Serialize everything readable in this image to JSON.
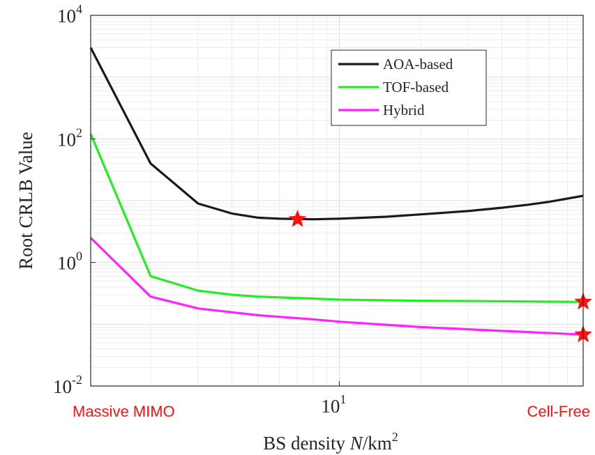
{
  "chart_data": {
    "type": "line",
    "y_scale": "log",
    "x_scale": "log",
    "grid": true,
    "legend_position": "top-right",
    "xlabel": "BS density N/km²",
    "ylabel": "Root CRLB Value",
    "xlim": [
      1.2,
      80
    ],
    "ylim": [
      0.01,
      10000
    ],
    "x_ticks": [
      {
        "value": 10,
        "base": "10",
        "exp": "1"
      }
    ],
    "y_ticks": [
      {
        "value": 0.01,
        "base": "10",
        "exp": "-2"
      },
      {
        "value": 1,
        "base": "10",
        "exp": "0"
      },
      {
        "value": 100,
        "base": "10",
        "exp": "2"
      },
      {
        "value": 10000,
        "base": "10",
        "exp": "4"
      }
    ],
    "series": [
      {
        "name": "AOA-based",
        "color": "#1a1a1a",
        "x": [
          1.2,
          2,
          3,
          4,
          5,
          6,
          8,
          10,
          15,
          20,
          30,
          40,
          50,
          60,
          80
        ],
        "y": [
          3000,
          40,
          9,
          6.2,
          5.3,
          5.1,
          5.0,
          5.1,
          5.5,
          6.0,
          6.8,
          7.7,
          8.6,
          9.6,
          12
        ]
      },
      {
        "name": "TOF-based",
        "color": "#22ee22",
        "x": [
          1.2,
          2,
          3,
          4,
          5,
          8,
          10,
          20,
          40,
          80
        ],
        "y": [
          120,
          0.6,
          0.35,
          0.3,
          0.28,
          0.26,
          0.25,
          0.24,
          0.235,
          0.23
        ]
      },
      {
        "name": "Hybrid",
        "color": "#ff22ff",
        "x": [
          1.2,
          2,
          3,
          5,
          8,
          10,
          20,
          40,
          80
        ],
        "y": [
          2.5,
          0.28,
          0.18,
          0.14,
          0.12,
          0.11,
          0.09,
          0.078,
          0.068
        ]
      }
    ],
    "markers": [
      {
        "x": 7,
        "y": 5.0,
        "color": "#ff1111"
      },
      {
        "x": 80,
        "y": 0.23,
        "color": "#ff1111"
      },
      {
        "x": 80,
        "y": 0.068,
        "color": "#ff1111"
      }
    ],
    "annotations": {
      "left": {
        "text": "Massive MIMO",
        "color": "#ff1111"
      },
      "right": {
        "text": "Cell-Free",
        "color": "#ff1111"
      }
    }
  }
}
